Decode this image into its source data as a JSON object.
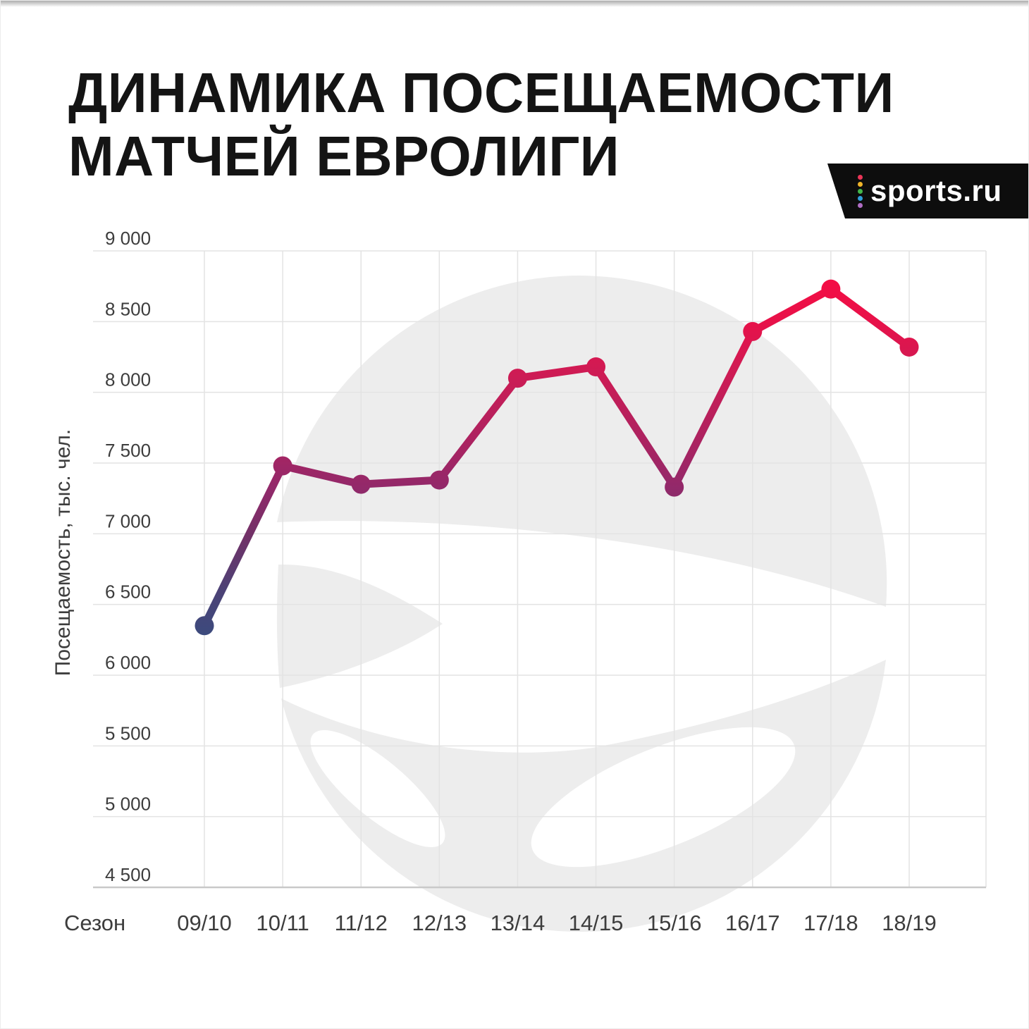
{
  "header": {
    "title_lines": [
      "ДИНАМИКА ПОСЕЩАЕМОСТИ",
      "МАТЧЕЙ ЕВРОЛИГИ"
    ]
  },
  "logo": {
    "text": "sports.ru",
    "background": "#0d0d0d",
    "dot_colors": [
      "#ea3557",
      "#f0b429",
      "#43b649",
      "#2f9edb",
      "#b06ec4"
    ]
  },
  "chart_data": {
    "type": "line",
    "title": "ДИНАМИКА ПОСЕЩАЕМОСТИ МАТЧЕЙ ЕВРОЛИГИ",
    "xlabel": "Сезон",
    "ylabel": "Посещаемость, тыс. чел.",
    "categories": [
      "09/10",
      "10/11",
      "11/12",
      "12/13",
      "13/14",
      "14/15",
      "15/16",
      "16/17",
      "17/18",
      "18/19"
    ],
    "values": [
      6350,
      7480,
      7350,
      7380,
      8100,
      8180,
      7330,
      8430,
      8730,
      8320
    ],
    "ylim": [
      4500,
      9000
    ],
    "ytick_step": 500,
    "ytick_labels": [
      "4 500",
      "5 000",
      "5 500",
      "6 000",
      "6 500",
      "7 000",
      "7 500",
      "8 000",
      "8 500",
      "9 000"
    ],
    "grid": true,
    "legend": "none",
    "gridline_color": "#e3e3e3",
    "axis_line_color": "#c9c9c9",
    "tick_color": "#3d3d3d",
    "watermark": "euroleague-logo",
    "watermark_color": "#ededed",
    "line_gradient": [
      {
        "offset": 0.0,
        "color": "#3c4a7d"
      },
      {
        "offset": 0.12,
        "color": "#4c4276"
      },
      {
        "offset": 0.27,
        "color": "#713167"
      },
      {
        "offset": 0.4,
        "color": "#92296a"
      },
      {
        "offset": 0.52,
        "color": "#aa2361"
      },
      {
        "offset": 0.72,
        "color": "#cf1b54"
      },
      {
        "offset": 0.86,
        "color": "#e81149"
      },
      {
        "offset": 1.0,
        "color": "#f70d43"
      }
    ]
  }
}
